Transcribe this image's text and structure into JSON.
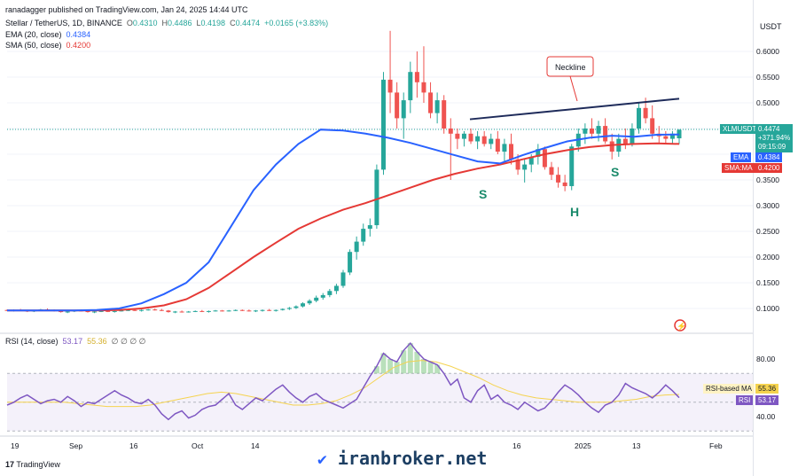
{
  "header": {
    "published": "ranadagger published on TradingView.com, Jan 24, 2025 14:44 UTC",
    "symbol_line": "Stellar / TetherUS, 1D, BINANCE",
    "o_label": "O",
    "o": "0.4310",
    "h_label": "H",
    "h": "0.4486",
    "l_label": "L",
    "l": "0.4198",
    "c_label": "C",
    "c": "0.4474",
    "change": "+0.0165 (+3.83%)",
    "ema_label": "EMA (20, close)",
    "ema_value": "0.4384",
    "sma_label": "SMA (50, close)",
    "sma_value": "0.4200",
    "rsi_label": "RSI (14, close)",
    "rsi_value": "53.17",
    "rsi_ma": "55.36",
    "rsi_zeros": "∅ ∅ ∅ ∅"
  },
  "currency": "USDT",
  "price_tags": {
    "symbol": "XLMUSDT",
    "price": "0.4474",
    "pct": "+371.94%",
    "countdown": "09:15:09",
    "ema_tag": "EMA",
    "ema_val": "0.4384",
    "sma_tag": "SMA:MA",
    "sma_val": "0.4200",
    "rsi_ma_tag": "RSI-based MA",
    "rsi_ma_val": "55.36",
    "rsi_tag": "RSI",
    "rsi_val": "53.17"
  },
  "annotations": {
    "neckline": "Neckline",
    "left_shoulder": "S",
    "head": "H",
    "right_shoulder": "S"
  },
  "footer": {
    "brand": "TradingView",
    "watermark": "iranbroker.net"
  },
  "colors": {
    "up": "#26a69a",
    "down": "#ef5350",
    "ema": "#2962ff",
    "sma": "#e53935",
    "rsi": "#7e57c2",
    "rsi_ma": "#f5d34f",
    "neckline": "#1e2b5a",
    "shoulder": "#1b8a6b"
  },
  "chart_data": [
    {
      "type": "candlestick",
      "title": "Stellar / TetherUS, 1D, BINANCE",
      "y_ticks": [
        "0.6000",
        "0.5500",
        "0.5000",
        "0.4500",
        "0.4000",
        "0.3500",
        "0.3000",
        "0.2500",
        "0.2000",
        "0.1500",
        "0.1000"
      ],
      "x_ticks": [
        "19",
        "Sep",
        "16",
        "Oct",
        "14",
        "",
        "16",
        "2025",
        "13",
        "Feb"
      ],
      "ylim": [
        0.05,
        0.65
      ],
      "candles_ohlc": [
        [
          0.097,
          0.098,
          0.095,
          0.096
        ],
        [
          0.096,
          0.098,
          0.094,
          0.097
        ],
        [
          0.097,
          0.099,
          0.095,
          0.096
        ],
        [
          0.096,
          0.097,
          0.093,
          0.094
        ],
        [
          0.094,
          0.097,
          0.093,
          0.096
        ],
        [
          0.096,
          0.099,
          0.095,
          0.098
        ],
        [
          0.098,
          0.1,
          0.096,
          0.097
        ],
        [
          0.097,
          0.098,
          0.094,
          0.095
        ],
        [
          0.095,
          0.097,
          0.092,
          0.093
        ],
        [
          0.093,
          0.095,
          0.091,
          0.094
        ],
        [
          0.094,
          0.097,
          0.093,
          0.096
        ],
        [
          0.096,
          0.098,
          0.094,
          0.095
        ],
        [
          0.095,
          0.096,
          0.092,
          0.093
        ],
        [
          0.093,
          0.095,
          0.091,
          0.094
        ],
        [
          0.094,
          0.096,
          0.093,
          0.095
        ],
        [
          0.095,
          0.097,
          0.093,
          0.094
        ],
        [
          0.094,
          0.096,
          0.092,
          0.095
        ],
        [
          0.095,
          0.097,
          0.094,
          0.096
        ],
        [
          0.096,
          0.098,
          0.095,
          0.097
        ],
        [
          0.097,
          0.099,
          0.095,
          0.096
        ],
        [
          0.096,
          0.098,
          0.094,
          0.097
        ],
        [
          0.097,
          0.099,
          0.096,
          0.098
        ],
        [
          0.098,
          0.1,
          0.096,
          0.097
        ],
        [
          0.097,
          0.099,
          0.095,
          0.096
        ],
        [
          0.096,
          0.097,
          0.092,
          0.093
        ],
        [
          0.093,
          0.095,
          0.091,
          0.094
        ],
        [
          0.094,
          0.096,
          0.092,
          0.093
        ],
        [
          0.093,
          0.095,
          0.092,
          0.094
        ],
        [
          0.094,
          0.096,
          0.093,
          0.095
        ],
        [
          0.095,
          0.097,
          0.093,
          0.094
        ],
        [
          0.094,
          0.096,
          0.092,
          0.095
        ],
        [
          0.095,
          0.097,
          0.094,
          0.096
        ],
        [
          0.096,
          0.097,
          0.094,
          0.095
        ],
        [
          0.095,
          0.097,
          0.094,
          0.096
        ],
        [
          0.096,
          0.098,
          0.095,
          0.097
        ],
        [
          0.097,
          0.098,
          0.095,
          0.096
        ],
        [
          0.096,
          0.098,
          0.094,
          0.095
        ],
        [
          0.095,
          0.097,
          0.093,
          0.096
        ],
        [
          0.096,
          0.098,
          0.094,
          0.097
        ],
        [
          0.097,
          0.099,
          0.095,
          0.096
        ],
        [
          0.096,
          0.098,
          0.094,
          0.097
        ],
        [
          0.097,
          0.1,
          0.096,
          0.099
        ],
        [
          0.099,
          0.103,
          0.097,
          0.101
        ],
        [
          0.101,
          0.106,
          0.099,
          0.104
        ],
        [
          0.104,
          0.112,
          0.102,
          0.11
        ],
        [
          0.11,
          0.118,
          0.107,
          0.115
        ],
        [
          0.115,
          0.125,
          0.112,
          0.121
        ],
        [
          0.121,
          0.13,
          0.117,
          0.126
        ],
        [
          0.126,
          0.138,
          0.122,
          0.134
        ],
        [
          0.134,
          0.148,
          0.128,
          0.144
        ],
        [
          0.144,
          0.175,
          0.14,
          0.17
        ],
        [
          0.17,
          0.215,
          0.165,
          0.21
        ],
        [
          0.21,
          0.24,
          0.195,
          0.23
        ],
        [
          0.23,
          0.265,
          0.222,
          0.255
        ],
        [
          0.255,
          0.275,
          0.24,
          0.262
        ],
        [
          0.262,
          0.38,
          0.255,
          0.37
        ],
        [
          0.37,
          0.56,
          0.36,
          0.545
        ],
        [
          0.545,
          0.64,
          0.48,
          0.52
        ],
        [
          0.52,
          0.54,
          0.45,
          0.47
        ],
        [
          0.47,
          0.52,
          0.43,
          0.505
        ],
        [
          0.505,
          0.58,
          0.48,
          0.56
        ],
        [
          0.56,
          0.6,
          0.51,
          0.54
        ],
        [
          0.54,
          0.61,
          0.5,
          0.52
        ],
        [
          0.52,
          0.54,
          0.47,
          0.48
        ],
        [
          0.48,
          0.52,
          0.46,
          0.505
        ],
        [
          0.505,
          0.515,
          0.44,
          0.45
        ],
        [
          0.45,
          0.47,
          0.35,
          0.44
        ],
        [
          0.44,
          0.45,
          0.41,
          0.43
        ],
        [
          0.43,
          0.445,
          0.415,
          0.44
        ],
        [
          0.44,
          0.45,
          0.42,
          0.425
        ],
        [
          0.425,
          0.445,
          0.41,
          0.435
        ],
        [
          0.435,
          0.445,
          0.415,
          0.42
        ],
        [
          0.42,
          0.44,
          0.41,
          0.43
        ],
        [
          0.43,
          0.445,
          0.4,
          0.405
        ],
        [
          0.405,
          0.43,
          0.385,
          0.42
        ],
        [
          0.42,
          0.44,
          0.38,
          0.39
        ],
        [
          0.39,
          0.4,
          0.36,
          0.37
        ],
        [
          0.37,
          0.39,
          0.345,
          0.38
        ],
        [
          0.38,
          0.4,
          0.365,
          0.395
        ],
        [
          0.395,
          0.42,
          0.38,
          0.41
        ],
        [
          0.41,
          0.415,
          0.37,
          0.375
        ],
        [
          0.375,
          0.385,
          0.35,
          0.36
        ],
        [
          0.36,
          0.375,
          0.335,
          0.345
        ],
        [
          0.345,
          0.36,
          0.328,
          0.338
        ],
        [
          0.338,
          0.42,
          0.33,
          0.415
        ],
        [
          0.415,
          0.45,
          0.405,
          0.44
        ],
        [
          0.44,
          0.46,
          0.42,
          0.45
        ],
        [
          0.45,
          0.47,
          0.43,
          0.44
        ],
        [
          0.44,
          0.465,
          0.425,
          0.455
        ],
        [
          0.455,
          0.47,
          0.42,
          0.425
        ],
        [
          0.425,
          0.44,
          0.39,
          0.405
        ],
        [
          0.405,
          0.44,
          0.395,
          0.43
        ],
        [
          0.43,
          0.45,
          0.41,
          0.42
        ],
        [
          0.42,
          0.46,
          0.415,
          0.45
        ],
        [
          0.45,
          0.5,
          0.44,
          0.49
        ],
        [
          0.49,
          0.51,
          0.46,
          0.47
        ],
        [
          0.47,
          0.495,
          0.43,
          0.44
        ],
        [
          0.44,
          0.455,
          0.42,
          0.435
        ],
        [
          0.435,
          0.445,
          0.42,
          0.43
        ],
        [
          0.43,
          0.445,
          0.42,
          0.44
        ],
        [
          0.431,
          0.4486,
          0.4198,
          0.4474
        ]
      ],
      "ema20_points": [
        0.096,
        0.096,
        0.096,
        0.096,
        0.097,
        0.1,
        0.11,
        0.128,
        0.15,
        0.19,
        0.26,
        0.33,
        0.38,
        0.42,
        0.448,
        0.446,
        0.44,
        0.432,
        0.422,
        0.41,
        0.398,
        0.386,
        0.382,
        0.398,
        0.412,
        0.425,
        0.432,
        0.436,
        0.434,
        0.438,
        0.4384
      ],
      "sma50_points": [
        0.096,
        0.096,
        0.096,
        0.096,
        0.096,
        0.097,
        0.1,
        0.106,
        0.118,
        0.14,
        0.17,
        0.2,
        0.228,
        0.255,
        0.275,
        0.292,
        0.305,
        0.32,
        0.335,
        0.35,
        0.362,
        0.372,
        0.38,
        0.39,
        0.4,
        0.408,
        0.414,
        0.418,
        0.42,
        0.421,
        0.42
      ],
      "neckline": [
        [
          0.0,
          0.468
        ],
        [
          1.0,
          0.508
        ]
      ]
    },
    {
      "type": "line",
      "title": "RSI (14, close)",
      "y_ticks": [
        "80.00",
        "40.00"
      ],
      "ylim": [
        25,
        95
      ],
      "rsi_points": [
        48,
        50,
        53,
        55,
        52,
        49,
        51,
        52,
        50,
        54,
        51,
        47,
        50,
        49,
        52,
        55,
        58,
        55,
        53,
        50,
        49,
        52,
        48,
        42,
        38,
        42,
        44,
        39,
        41,
        45,
        47,
        48,
        52,
        56,
        48,
        45,
        49,
        53,
        51,
        55,
        59,
        62,
        57,
        53,
        50,
        54,
        56,
        52,
        50,
        48,
        46,
        49,
        52,
        60,
        68,
        75,
        84,
        80,
        78,
        86,
        91,
        85,
        80,
        78,
        76,
        70,
        62,
        66,
        53,
        50,
        58,
        62,
        52,
        55,
        50,
        48,
        45,
        50,
        47,
        44,
        46,
        51,
        57,
        62,
        59,
        55,
        50,
        46,
        43,
        48,
        50,
        55,
        63,
        60,
        58,
        56,
        53,
        57,
        62,
        58,
        53.17
      ],
      "rsi_ma_points": [
        50,
        50,
        50,
        50,
        50,
        49,
        48,
        47,
        47,
        47,
        48,
        50,
        52,
        54,
        56,
        57,
        56,
        54,
        52,
        50,
        48,
        48,
        49,
        51,
        55,
        60,
        67,
        74,
        78,
        79,
        78,
        75,
        71,
        67,
        62,
        58,
        55,
        53,
        52,
        51,
        50,
        50,
        50,
        51,
        52,
        54,
        55,
        55.36
      ]
    }
  ]
}
